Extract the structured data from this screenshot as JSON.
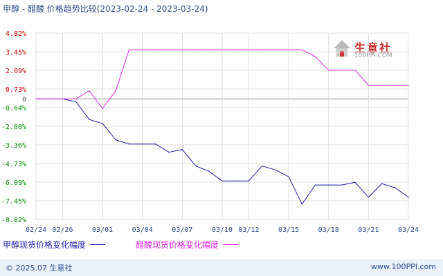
{
  "title": "甲醇 - 醋酸 价格趋势比较(2023-02-24 - 2023-03-24)",
  "logo": {
    "name": "生意社",
    "url": "100PPI.COM"
  },
  "footer": {
    "copyright": "© 2025.07 生意社",
    "site": "www.100PPI.com"
  },
  "legend": [
    {
      "label": "甲醇现货价格变化幅度",
      "color": "#1a1aa6"
    },
    {
      "label": "醋酸现货价格变化幅度",
      "color": "#e020e0"
    }
  ],
  "chart_data": {
    "type": "line",
    "title": "甲醇 - 醋酸 价格趋势比较(2023-02-24 - 2023-03-24)",
    "xlabel": "",
    "ylabel": "",
    "ylim": [
      -8.82,
      4.82
    ],
    "grid": true,
    "legend_position": "bottom",
    "x_ticks": [
      "02/24",
      "02/26",
      "03/01",
      "03/04",
      "03/07",
      "03/10",
      "03/12",
      "03/15",
      "03/18",
      "03/21",
      "03/24"
    ],
    "y_ticks": [
      "4.82%",
      "3.45%",
      "2.09%",
      "0.73%",
      "0",
      "-0.64%",
      "-2.00%",
      "-3.36%",
      "-4.73%",
      "-6.09%",
      "-7.45%",
      "-8.82%"
    ],
    "y_tick_values": [
      4.82,
      3.45,
      2.09,
      0.73,
      0,
      -0.64,
      -2.0,
      -3.36,
      -4.73,
      -6.09,
      -7.45,
      -8.82
    ],
    "x": [
      "02/24",
      "02/25",
      "02/26",
      "02/27",
      "02/28",
      "03/01",
      "03/02",
      "03/03",
      "03/04",
      "03/05",
      "03/06",
      "03/07",
      "03/08",
      "03/09",
      "03/10",
      "03/11",
      "03/12",
      "03/13",
      "03/14",
      "03/15",
      "03/16",
      "03/17",
      "03/18",
      "03/19",
      "03/20",
      "03/21",
      "03/22",
      "03/23",
      "03/24"
    ],
    "series": [
      {
        "name": "甲醇现货价格变化幅度",
        "color": "#1a1aa6",
        "values": [
          0,
          0,
          0,
          -0.2,
          -1.5,
          -1.8,
          -3.0,
          -3.3,
          -3.3,
          -3.3,
          -3.9,
          -3.7,
          -4.9,
          -5.3,
          -6.0,
          -6.0,
          -6.0,
          -4.9,
          -5.2,
          -5.7,
          -7.7,
          -6.3,
          -6.3,
          -6.3,
          -6.1,
          -7.2,
          -6.2,
          -6.5,
          -7.2
        ]
      },
      {
        "name": "醋酸现货价格变化幅度",
        "color": "#e020e0",
        "values": [
          0,
          0,
          0,
          0,
          0.6,
          -0.7,
          0.6,
          3.6,
          3.6,
          3.6,
          3.6,
          3.6,
          3.6,
          3.6,
          3.6,
          3.6,
          3.6,
          3.6,
          3.6,
          3.6,
          3.6,
          3.1,
          2.1,
          2.1,
          2.1,
          1.0,
          1.0,
          1.0,
          1.0
        ]
      }
    ]
  }
}
